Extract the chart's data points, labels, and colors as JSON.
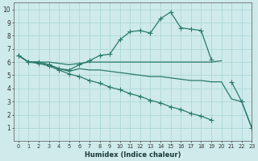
{
  "xlabel": "Humidex (Indice chaleur)",
  "bg_color": "#ceeaea",
  "grid_color": "#a8d4d4",
  "line_color": "#2a7a6a",
  "xlim": [
    -0.5,
    23
  ],
  "ylim": [
    0,
    10.5
  ],
  "xticks": [
    0,
    1,
    2,
    3,
    4,
    5,
    6,
    7,
    8,
    9,
    10,
    11,
    12,
    13,
    14,
    15,
    16,
    17,
    18,
    19,
    20,
    21,
    22,
    23
  ],
  "yticks": [
    1,
    2,
    3,
    4,
    5,
    6,
    7,
    8,
    9,
    10
  ],
  "lines": [
    {
      "x": [
        0,
        1,
        2,
        3,
        4,
        5,
        6,
        7,
        8,
        9,
        10,
        11,
        12,
        13,
        14,
        15,
        16,
        17,
        18,
        19,
        20,
        21,
        22,
        23
      ],
      "y": [
        6.5,
        6.0,
        6.0,
        5.8,
        5.5,
        5.4,
        5.8,
        6.1,
        6.5,
        6.6,
        7.7,
        8.3,
        8.4,
        8.2,
        9.3,
        9.8,
        8.6,
        8.5,
        8.4,
        6.2,
        null,
        null,
        null,
        null
      ],
      "marker": true
    },
    {
      "x": [
        0,
        1,
        2,
        3,
        4,
        5,
        6,
        7,
        8,
        9,
        10,
        11,
        12,
        13,
        14,
        15,
        16,
        17,
        18,
        19,
        20,
        21,
        22,
        23
      ],
      "y": [
        6.5,
        6.0,
        6.0,
        6.0,
        5.9,
        5.8,
        5.9,
        6.0,
        6.0,
        6.0,
        6.0,
        6.0,
        6.0,
        6.0,
        6.0,
        6.0,
        6.0,
        6.0,
        6.0,
        6.0,
        6.1,
        null,
        null,
        null
      ],
      "marker": false
    },
    {
      "x": [
        0,
        1,
        2,
        3,
        4,
        5,
        6,
        7,
        8,
        9,
        10,
        11,
        12,
        13,
        14,
        15,
        16,
        17,
        18,
        19,
        20,
        21,
        22,
        23
      ],
      "y": [
        6.5,
        6.0,
        6.0,
        5.8,
        5.5,
        5.3,
        5.5,
        5.4,
        5.4,
        5.3,
        5.2,
        5.1,
        5.0,
        4.9,
        4.9,
        4.8,
        4.7,
        4.6,
        4.6,
        4.5,
        4.5,
        3.2,
        3.0,
        1.0
      ],
      "marker": false
    },
    {
      "x": [
        0,
        1,
        2,
        3,
        4,
        5,
        6,
        7,
        8,
        9,
        10,
        11,
        12,
        13,
        14,
        15,
        16,
        17,
        18,
        19,
        20,
        21,
        22,
        23
      ],
      "y": [
        6.5,
        6.0,
        5.9,
        5.7,
        5.4,
        5.1,
        4.9,
        4.6,
        4.4,
        4.1,
        3.9,
        3.6,
        3.4,
        3.1,
        2.9,
        2.6,
        2.4,
        2.1,
        1.9,
        1.6,
        null,
        4.5,
        3.0,
        1.0
      ],
      "marker": true
    }
  ]
}
